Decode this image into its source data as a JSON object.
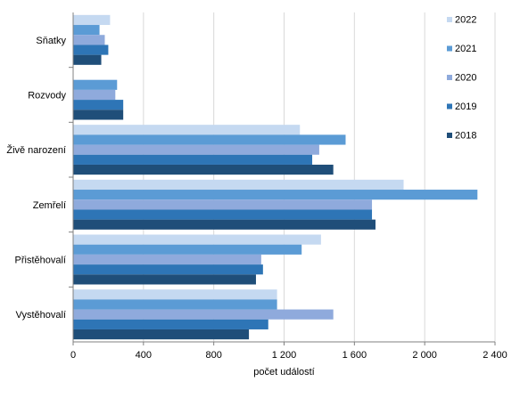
{
  "chart_data": {
    "type": "bar",
    "orientation": "horizontal",
    "categories": [
      "Sňatky",
      "Rozvody",
      "Živě narození",
      "Zemřelí",
      "Přistěhovalí",
      "Vystěhovalí"
    ],
    "series": [
      {
        "name": "2022",
        "color": "#c5d9f1",
        "values": [
          210,
          null,
          1290,
          1880,
          1410,
          1160
        ]
      },
      {
        "name": "2021",
        "color": "#5b9bd5",
        "values": [
          150,
          250,
          1550,
          2300,
          1300,
          1160
        ]
      },
      {
        "name": "2020",
        "color": "#8faadc",
        "values": [
          180,
          240,
          1400,
          1700,
          1070,
          1480
        ]
      },
      {
        "name": "2019",
        "color": "#2e75b6",
        "values": [
          200,
          285,
          1360,
          1700,
          1080,
          1110
        ]
      },
      {
        "name": "2018",
        "color": "#1f4e79",
        "values": [
          160,
          285,
          1480,
          1720,
          1040,
          1000
        ]
      }
    ],
    "xlabel": "počet událostí",
    "xlim": [
      0,
      2400
    ],
    "xticks": [
      0,
      400,
      800,
      1200,
      1600,
      2000,
      2400
    ],
    "xtick_labels": [
      "0",
      "400",
      "800",
      "1 200",
      "1 600",
      "2 000",
      "2 400"
    ],
    "grid": "vertical",
    "legend_placement": "top-right"
  }
}
